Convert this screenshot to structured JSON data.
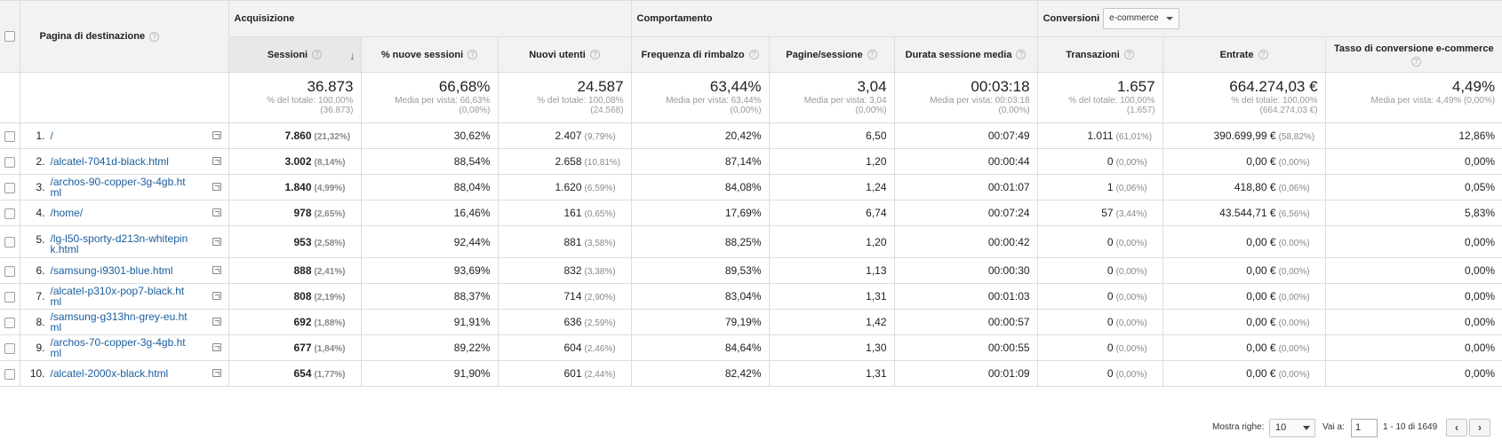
{
  "groups": {
    "acquisizione": "Acquisizione",
    "comportamento": "Comportamento",
    "conversioni": "Conversioni",
    "conversion_select": "e-commerce"
  },
  "columns": {
    "page": "Pagina di destinazione",
    "sessioni": "Sessioni",
    "nuove_sessioni": "% nuove sessioni",
    "nuovi_utenti": "Nuovi utenti",
    "rimbalzo": "Frequenza di rimbalzo",
    "pagine_sessione": "Pagine/sessione",
    "durata": "Durata sessione media",
    "transazioni": "Transazioni",
    "entrate": "Entrate",
    "tasso": "Tasso di conversione e-commerce"
  },
  "totals": {
    "sessioni": {
      "value": "36.873",
      "sub1": "% del totale: 100,00%",
      "sub2": "(36.873)"
    },
    "nuove_sessioni": {
      "value": "66,68%",
      "sub1": "Media per vista: 66,63%",
      "sub2": "(0,08%)"
    },
    "nuovi_utenti": {
      "value": "24.587",
      "sub1": "% del totale: 100,08%",
      "sub2": "(24.568)"
    },
    "rimbalzo": {
      "value": "63,44%",
      "sub1": "Media per vista: 63,44%",
      "sub2": "(0,00%)"
    },
    "pagine_sessione": {
      "value": "3,04",
      "sub1": "Media per vista: 3,04",
      "sub2": "(0,00%)"
    },
    "durata": {
      "value": "00:03:18",
      "sub1": "Media per vista: 00:03:18",
      "sub2": "(0,00%)"
    },
    "transazioni": {
      "value": "1.657",
      "sub1": "% del totale: 100,00%",
      "sub2": "(1.657)"
    },
    "entrate": {
      "value": "664.274,03 €",
      "sub1": "% del totale: 100,00%",
      "sub2": "(664.274,03 €)"
    },
    "tasso": {
      "value": "4,49%",
      "sub1": "Media per vista: 4,49% (0,00%)",
      "sub2": ""
    }
  },
  "rows": [
    {
      "idx": "1.",
      "page": "/",
      "sessioni": "7.860",
      "sessioni_pct": "(21,32%)",
      "nuove_sessioni": "30,62%",
      "nuovi_utenti": "2.407",
      "nuovi_utenti_pct": "(9,79%)",
      "rimbalzo": "20,42%",
      "pagine_sessione": "6,50",
      "durata": "00:07:49",
      "transazioni": "1.011",
      "transazioni_pct": "(61,01%)",
      "entrate": "390.699,99 €",
      "entrate_pct": "(58,82%)",
      "tasso": "12,86%"
    },
    {
      "idx": "2.",
      "page": "/alcatel-7041d-black.html",
      "sessioni": "3.002",
      "sessioni_pct": "(8,14%)",
      "nuove_sessioni": "88,54%",
      "nuovi_utenti": "2.658",
      "nuovi_utenti_pct": "(10,81%)",
      "rimbalzo": "87,14%",
      "pagine_sessione": "1,20",
      "durata": "00:00:44",
      "transazioni": "0",
      "transazioni_pct": "(0,00%)",
      "entrate": "0,00 €",
      "entrate_pct": "(0,00%)",
      "tasso": "0,00%"
    },
    {
      "idx": "3.",
      "page": "/archos-90-copper-3g-4gb.html",
      "sessioni": "1.840",
      "sessioni_pct": "(4,99%)",
      "nuove_sessioni": "88,04%",
      "nuovi_utenti": "1.620",
      "nuovi_utenti_pct": "(6,59%)",
      "rimbalzo": "84,08%",
      "pagine_sessione": "1,24",
      "durata": "00:01:07",
      "transazioni": "1",
      "transazioni_pct": "(0,06%)",
      "entrate": "418,80 €",
      "entrate_pct": "(0,06%)",
      "tasso": "0,05%"
    },
    {
      "idx": "4.",
      "page": "/home/",
      "sessioni": "978",
      "sessioni_pct": "(2,65%)",
      "nuove_sessioni": "16,46%",
      "nuovi_utenti": "161",
      "nuovi_utenti_pct": "(0,65%)",
      "rimbalzo": "17,69%",
      "pagine_sessione": "6,74",
      "durata": "00:07:24",
      "transazioni": "57",
      "transazioni_pct": "(3,44%)",
      "entrate": "43.544,71 €",
      "entrate_pct": "(6,56%)",
      "tasso": "5,83%"
    },
    {
      "idx": "5.",
      "page": "/lg-l50-sporty-d213n-whitepink.html",
      "sessioni": "953",
      "sessioni_pct": "(2,58%)",
      "nuove_sessioni": "92,44%",
      "nuovi_utenti": "881",
      "nuovi_utenti_pct": "(3,58%)",
      "rimbalzo": "88,25%",
      "pagine_sessione": "1,20",
      "durata": "00:00:42",
      "transazioni": "0",
      "transazioni_pct": "(0,00%)",
      "entrate": "0,00 €",
      "entrate_pct": "(0,00%)",
      "tasso": "0,00%"
    },
    {
      "idx": "6.",
      "page": "/samsung-i9301-blue.html",
      "sessioni": "888",
      "sessioni_pct": "(2,41%)",
      "nuove_sessioni": "93,69%",
      "nuovi_utenti": "832",
      "nuovi_utenti_pct": "(3,38%)",
      "rimbalzo": "89,53%",
      "pagine_sessione": "1,13",
      "durata": "00:00:30",
      "transazioni": "0",
      "transazioni_pct": "(0,00%)",
      "entrate": "0,00 €",
      "entrate_pct": "(0,00%)",
      "tasso": "0,00%"
    },
    {
      "idx": "7.",
      "page": "/alcatel-p310x-pop7-black.html",
      "sessioni": "808",
      "sessioni_pct": "(2,19%)",
      "nuove_sessioni": "88,37%",
      "nuovi_utenti": "714",
      "nuovi_utenti_pct": "(2,90%)",
      "rimbalzo": "83,04%",
      "pagine_sessione": "1,31",
      "durata": "00:01:03",
      "transazioni": "0",
      "transazioni_pct": "(0,00%)",
      "entrate": "0,00 €",
      "entrate_pct": "(0,00%)",
      "tasso": "0,00%"
    },
    {
      "idx": "8.",
      "page": "/samsung-g313hn-grey-eu.html",
      "sessioni": "692",
      "sessioni_pct": "(1,88%)",
      "nuove_sessioni": "91,91%",
      "nuovi_utenti": "636",
      "nuovi_utenti_pct": "(2,59%)",
      "rimbalzo": "79,19%",
      "pagine_sessione": "1,42",
      "durata": "00:00:57",
      "transazioni": "0",
      "transazioni_pct": "(0,00%)",
      "entrate": "0,00 €",
      "entrate_pct": "(0,00%)",
      "tasso": "0,00%"
    },
    {
      "idx": "9.",
      "page": "/archos-70-copper-3g-4gb.html",
      "sessioni": "677",
      "sessioni_pct": "(1,84%)",
      "nuove_sessioni": "89,22%",
      "nuovi_utenti": "604",
      "nuovi_utenti_pct": "(2,46%)",
      "rimbalzo": "84,64%",
      "pagine_sessione": "1,30",
      "durata": "00:00:55",
      "transazioni": "0",
      "transazioni_pct": "(0,00%)",
      "entrate": "0,00 €",
      "entrate_pct": "(0,00%)",
      "tasso": "0,00%"
    },
    {
      "idx": "10.",
      "page": "/alcatel-2000x-black.html",
      "sessioni": "654",
      "sessioni_pct": "(1,77%)",
      "nuove_sessioni": "91,90%",
      "nuovi_utenti": "601",
      "nuovi_utenti_pct": "(2,44%)",
      "rimbalzo": "82,42%",
      "pagine_sessione": "1,31",
      "durata": "00:01:09",
      "transazioni": "0",
      "transazioni_pct": "(0,00%)",
      "entrate": "0,00 €",
      "entrate_pct": "(0,00%)",
      "tasso": "0,00%"
    }
  ],
  "footer": {
    "show_rows_label": "Mostra righe:",
    "show_rows_value": "10",
    "goto_label": "Vai a:",
    "goto_value": "1",
    "range": "1 - 10 di 1649",
    "prev": "‹",
    "next": "›"
  }
}
